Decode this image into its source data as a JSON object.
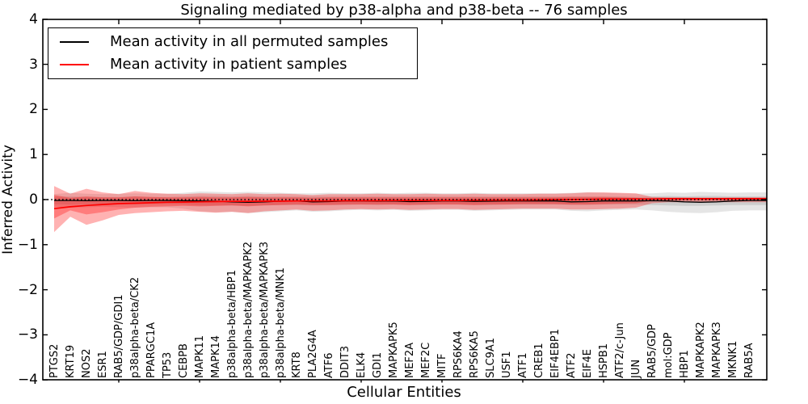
{
  "title": "Signaling mediated by p38-alpha and p38-beta -- 76 samples",
  "legend": {
    "items": [
      {
        "label": "Mean activity in all permuted samples",
        "color": "#000000"
      },
      {
        "label": "Mean activity in patient samples",
        "color": "#ff0000"
      }
    ]
  },
  "chart_data": {
    "type": "line",
    "title": "Signaling mediated by p38-alpha and p38-beta -- 76 samples",
    "xlabel": "Cellular Entities",
    "ylabel": "Inferred Activity",
    "ylim": [
      -4,
      4
    ],
    "yticks": [
      4,
      3,
      2,
      1,
      0,
      -1,
      -2,
      -3,
      -4
    ],
    "yticklabels": [
      "4",
      "3",
      "2",
      "1",
      "0",
      "−1",
      "−2",
      "−3",
      "−4"
    ],
    "xtick_entity_indices": [
      4,
      9,
      14,
      19,
      24,
      29,
      34,
      39
    ],
    "legend_position": "upper left",
    "grid": false,
    "categories": [
      "PTGS2",
      "KRT19",
      "NOS2",
      "ESR1",
      "RAB5/GDP/GDI1",
      "p38alpha-beta/CK2",
      "PPARGC1A",
      "TP53",
      "CEBPB",
      "MAPK11",
      "MAPK14",
      "p38alpha-beta/HBP1",
      "p38alpha-beta/MAPKAPK2",
      "p38alpha-beta/MAPKAPK3",
      "p38alpha-beta/MNK1",
      "KRT8",
      "PLA2G4A",
      "ATF6",
      "DDIT3",
      "ELK4",
      "GDI1",
      "MAPKAPK5",
      "MEF2A",
      "MEF2C",
      "MITF",
      "RPS6KA4",
      "RPS6KA5",
      "SLC9A1",
      "USF1",
      "ATF1",
      "CREB1",
      "EIF4EBP1",
      "ATF2",
      "EIF4E",
      "HSPB1",
      "ATF2/c-Jun",
      "JUN",
      "RAB5/GDP",
      "mol:GDP",
      "HBP1",
      "MAPKAPK2",
      "MAPKAPK3",
      "MKNK1",
      "RAB5A"
    ],
    "series": [
      {
        "name": "Mean activity in all permuted samples",
        "color": "#000000",
        "values": [
          -0.02,
          -0.02,
          -0.025,
          -0.02,
          -0.02,
          -0.025,
          -0.02,
          -0.02,
          -0.025,
          -0.03,
          -0.035,
          -0.05,
          -0.06,
          -0.05,
          -0.035,
          -0.03,
          -0.05,
          -0.045,
          -0.03,
          -0.03,
          -0.035,
          -0.03,
          -0.045,
          -0.04,
          -0.03,
          -0.03,
          -0.04,
          -0.035,
          -0.03,
          -0.03,
          -0.03,
          -0.03,
          -0.05,
          -0.045,
          -0.03,
          -0.03,
          -0.03,
          -0.025,
          -0.03,
          -0.05,
          -0.06,
          -0.05,
          -0.03,
          -0.02
        ]
      },
      {
        "name": "Mean activity in patient samples",
        "color": "#ff0000",
        "values": [
          -0.2,
          -0.16,
          -0.13,
          -0.11,
          -0.09,
          -0.08,
          -0.07,
          -0.06,
          -0.055,
          -0.05,
          -0.045,
          -0.04,
          -0.04,
          -0.035,
          -0.035,
          -0.03,
          -0.03,
          -0.03,
          -0.025,
          -0.025,
          -0.025,
          -0.02,
          -0.02,
          -0.02,
          -0.02,
          -0.02,
          -0.015,
          -0.015,
          -0.01,
          -0.01,
          -0.005,
          0,
          0,
          0.005,
          0.01,
          0.01,
          0.015,
          0.015,
          0.02,
          0.02,
          0.02,
          0.02,
          0.02,
          0.02
        ]
      }
    ],
    "bands": [
      {
        "name": "permuted-outer",
        "color": "rgba(0,0,0,0.10)",
        "hi": [
          0.12,
          0.15,
          0.13,
          0.12,
          0.13,
          0.14,
          0.13,
          0.13,
          0.15,
          0.18,
          0.17,
          0.16,
          0.17,
          0.16,
          0.15,
          0.14,
          0.14,
          0.15,
          0.14,
          0.14,
          0.15,
          0.14,
          0.15,
          0.15,
          0.14,
          0.14,
          0.15,
          0.14,
          0.14,
          0.14,
          0.14,
          0.14,
          0.15,
          0.16,
          0.15,
          0.14,
          0.13,
          0.14,
          0.16,
          0.15,
          0.17,
          0.16,
          0.15,
          0.16
        ],
        "lo": [
          -0.16,
          -0.18,
          -0.17,
          -0.16,
          -0.17,
          -0.18,
          -0.17,
          -0.17,
          -0.2,
          -0.26,
          -0.28,
          -0.27,
          -0.3,
          -0.28,
          -0.26,
          -0.24,
          -0.27,
          -0.26,
          -0.24,
          -0.23,
          -0.24,
          -0.23,
          -0.25,
          -0.24,
          -0.23,
          -0.23,
          -0.25,
          -0.24,
          -0.23,
          -0.22,
          -0.22,
          -0.22,
          -0.25,
          -0.26,
          -0.24,
          -0.23,
          -0.22,
          -0.24,
          -0.27,
          -0.29,
          -0.3,
          -0.28,
          -0.25,
          -0.24
        ]
      },
      {
        "name": "permuted-inner",
        "color": "rgba(0,0,0,0.10)",
        "hi": [
          0.06,
          0.07,
          0.06,
          0.06,
          0.06,
          0.07,
          0.06,
          0.06,
          0.07,
          0.08,
          0.08,
          0.07,
          0.08,
          0.07,
          0.07,
          0.07,
          0.07,
          0.07,
          0.07,
          0.07,
          0.07,
          0.07,
          0.07,
          0.07,
          0.07,
          0.07,
          0.07,
          0.07,
          0.07,
          0.07,
          0.07,
          0.07,
          0.07,
          0.07,
          0.07,
          0.07,
          0.06,
          0.07,
          0.08,
          0.07,
          0.08,
          0.08,
          0.07,
          0.07
        ],
        "lo": [
          -0.1,
          -0.11,
          -0.1,
          -0.1,
          -0.1,
          -0.11,
          -0.1,
          -0.1,
          -0.11,
          -0.13,
          -0.13,
          -0.13,
          -0.14,
          -0.13,
          -0.12,
          -0.12,
          -0.13,
          -0.12,
          -0.12,
          -0.11,
          -0.12,
          -0.11,
          -0.12,
          -0.12,
          -0.11,
          -0.11,
          -0.12,
          -0.12,
          -0.11,
          -0.11,
          -0.11,
          -0.11,
          -0.12,
          -0.12,
          -0.11,
          -0.11,
          -0.11,
          -0.12,
          -0.13,
          -0.14,
          -0.14,
          -0.13,
          -0.12,
          -0.12
        ]
      },
      {
        "name": "patient-outer",
        "color": "rgba(255,0,0,0.30)",
        "hi": [
          0.3,
          0.13,
          0.24,
          0.16,
          0.12,
          0.19,
          0.15,
          0.13,
          0.12,
          0.14,
          0.13,
          0.12,
          0.14,
          0.12,
          0.13,
          0.12,
          0.1,
          0.12,
          0.12,
          0.12,
          0.13,
          0.12,
          0.12,
          0.13,
          0.12,
          0.12,
          0.13,
          0.12,
          0.12,
          0.12,
          0.13,
          0.13,
          0.14,
          0.16,
          0.16,
          0.15,
          0.14,
          0.06,
          0.05,
          0.05,
          0.045,
          0.045,
          0.05,
          0.05
        ],
        "lo": [
          -0.72,
          -0.38,
          -0.56,
          -0.46,
          -0.34,
          -0.3,
          -0.28,
          -0.26,
          -0.25,
          -0.27,
          -0.29,
          -0.27,
          -0.3,
          -0.26,
          -0.24,
          -0.22,
          -0.25,
          -0.24,
          -0.22,
          -0.21,
          -0.22,
          -0.21,
          -0.23,
          -0.22,
          -0.21,
          -0.21,
          -0.23,
          -0.22,
          -0.21,
          -0.2,
          -0.2,
          -0.2,
          -0.22,
          -0.22,
          -0.21,
          -0.2,
          -0.18,
          -0.08,
          -0.06,
          -0.06,
          -0.055,
          -0.055,
          -0.06,
          -0.06
        ]
      },
      {
        "name": "patient-inner",
        "color": "rgba(255,0,0,0.30)",
        "hi": [
          0.1,
          0.04,
          0.07,
          0.05,
          0.05,
          0.07,
          0.06,
          0.05,
          0.05,
          0.06,
          0.05,
          0.05,
          0.06,
          0.05,
          0.05,
          0.05,
          0.04,
          0.05,
          0.05,
          0.05,
          0.05,
          0.05,
          0.05,
          0.05,
          0.05,
          0.05,
          0.05,
          0.05,
          0.05,
          0.05,
          0.05,
          0.05,
          0.06,
          0.06,
          0.06,
          0.05,
          0.04,
          0.02,
          0.02,
          0.02,
          0.02,
          0.02,
          0.02,
          0.02
        ],
        "lo": [
          -0.42,
          -0.24,
          -0.33,
          -0.28,
          -0.22,
          -0.18,
          -0.16,
          -0.15,
          -0.14,
          -0.15,
          -0.14,
          -0.13,
          -0.15,
          -0.13,
          -0.12,
          -0.11,
          -0.12,
          -0.12,
          -0.11,
          -0.11,
          -0.11,
          -0.11,
          -0.12,
          -0.11,
          -0.11,
          -0.11,
          -0.12,
          -0.11,
          -0.11,
          -0.1,
          -0.1,
          -0.1,
          -0.11,
          -0.11,
          -0.1,
          -0.09,
          -0.08,
          -0.03,
          -0.02,
          -0.02,
          -0.02,
          -0.02,
          -0.02,
          -0.02
        ]
      }
    ],
    "zero_line": {
      "value": 0,
      "style": "dotted",
      "color": "#000000"
    }
  }
}
